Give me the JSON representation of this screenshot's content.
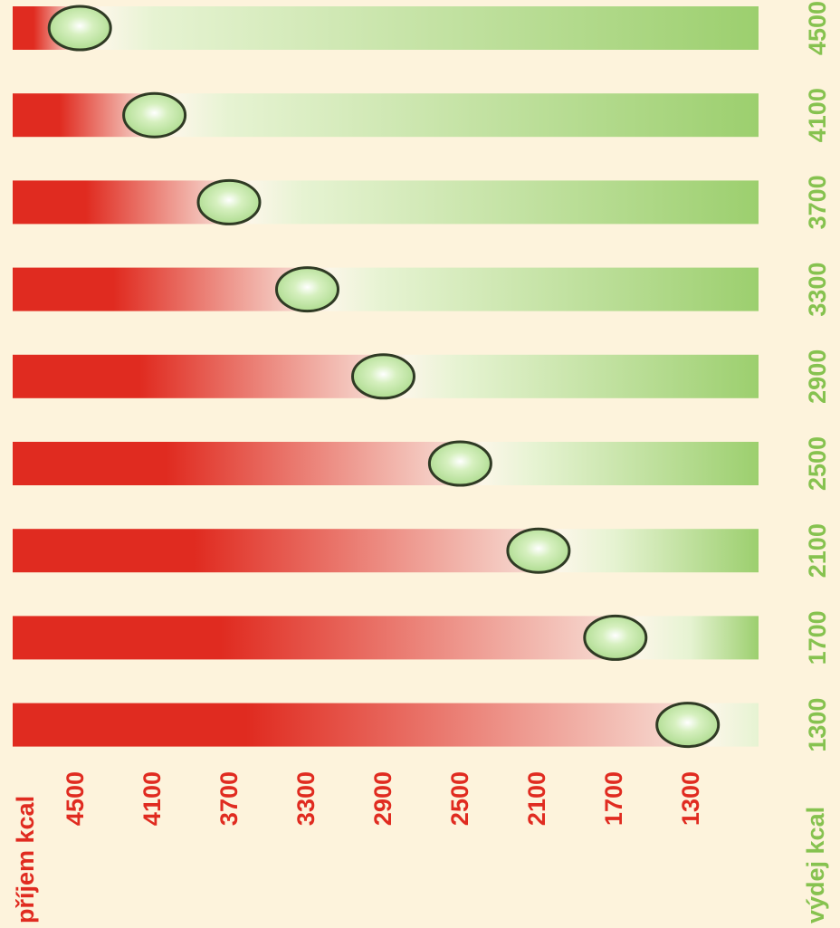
{
  "chart_data": {
    "type": "bar",
    "left_axis_label": "příjem kcal",
    "right_axis_label": "výdej kcal",
    "left_labels": [
      "4500",
      "4100",
      "3700",
      "3300",
      "2900",
      "2500",
      "2100",
      "1700",
      "1300"
    ],
    "right_labels": [
      "4500",
      "4100",
      "3700",
      "3300",
      "2900",
      "2500",
      "2100",
      "1700",
      "1300"
    ],
    "bars": [
      {
        "intake": 4500,
        "expenditure": 4500,
        "balance_fraction": 0.09
      },
      {
        "intake": 4100,
        "expenditure": 4100,
        "balance_fraction": 0.19
      },
      {
        "intake": 3700,
        "expenditure": 3700,
        "balance_fraction": 0.29
      },
      {
        "intake": 3300,
        "expenditure": 3300,
        "balance_fraction": 0.395
      },
      {
        "intake": 2900,
        "expenditure": 2900,
        "balance_fraction": 0.497
      },
      {
        "intake": 2500,
        "expenditure": 2500,
        "balance_fraction": 0.6
      },
      {
        "intake": 2100,
        "expenditure": 2100,
        "balance_fraction": 0.705
      },
      {
        "intake": 1700,
        "expenditure": 1700,
        "balance_fraction": 0.808
      },
      {
        "intake": 1300,
        "expenditure": 1300,
        "balance_fraction": 0.905
      }
    ],
    "colors": {
      "intake": "#e02b20",
      "expenditure": "#9ccf6e",
      "background": "#fdf3dc",
      "marker": "#a9d98a"
    }
  }
}
